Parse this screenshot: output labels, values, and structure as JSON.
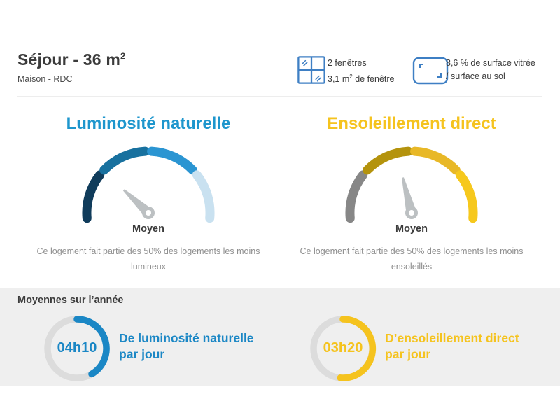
{
  "colors": {
    "title_text": "#3b3b3b",
    "muted_text": "#8f8f8f",
    "icon_blue": "#3e7fc4",
    "band_bg": "#efefef",
    "ring_track": "#dcdcdc",
    "needle": "#bcc0c2",
    "divider": "#ededed"
  },
  "header": {
    "title": "Séjour - 36 m",
    "title_sup": "2",
    "subtitle": "Maison - RDC"
  },
  "info": {
    "windows": {
      "icon": "window-grid-icon",
      "line1": "2 fenêtres",
      "area": "3,1 m",
      "area_sup": "2",
      "area_suffix": " de fenêtre"
    },
    "glazing": {
      "icon": "surface-ratio-icon",
      "line1": "8,6 % de surface vitrée",
      "line2": "/ surface au sol"
    }
  },
  "gauges": [
    {
      "title": "Luminosité naturelle",
      "title_color": "#1e96cd",
      "segments": [
        "#103c5b",
        "#18719f",
        "#2b95d2",
        "#c9e1f0"
      ],
      "arc": {
        "start": 185,
        "end": -5,
        "gap": 6,
        "radius": 88,
        "stroke": 13
      },
      "needle": {
        "angle": 137,
        "length": 48
      },
      "label": "Moyen",
      "desc_line1": "Ce logement fait partie des 50% des logements les moins",
      "desc_line2": "lumineux"
    },
    {
      "title": "Ensoleillement direct",
      "title_color": "#f5c31e",
      "segments": [
        "#878787",
        "#b4930d",
        "#e8b827",
        "#f6c81d"
      ],
      "arc": {
        "start": 185,
        "end": -5,
        "gap": 6,
        "radius": 88,
        "stroke": 13
      },
      "needle": {
        "angle": 104,
        "length": 52
      },
      "label": "Moyen",
      "desc_line1": "Ce logement fait partie des 50% des logements les moins",
      "desc_line2": "ensoleillés"
    }
  ],
  "averages": {
    "heading": "Moyennes sur l’année",
    "items": [
      {
        "value": "04h10",
        "color": "#1b87c5",
        "sweep_deg": 150,
        "label_line1": "De luminosité naturelle",
        "label_line2": "par jour"
      },
      {
        "value": "03h20",
        "color": "#f5c31e",
        "sweep_deg": 185,
        "label_line1": "D’ensoleillement direct",
        "label_line2": "par jour"
      }
    ]
  }
}
